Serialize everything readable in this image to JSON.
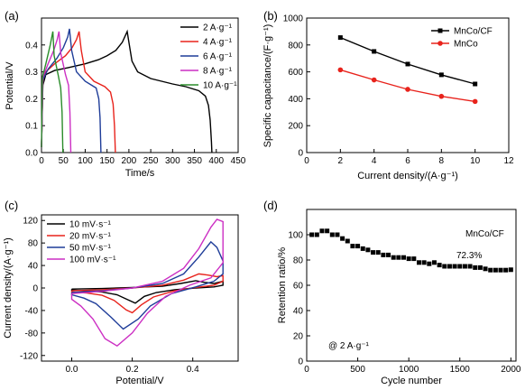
{
  "chart_data": [
    {
      "panel_label": "(a)",
      "type": "line",
      "xlabel": "Time/s",
      "ylabel": "Potential/V",
      "xlim": [
        0,
        450
      ],
      "ylim": [
        0,
        0.5
      ],
      "xticks": [
        "0",
        "50",
        "100",
        "150",
        "200",
        "250",
        "300",
        "350",
        "400",
        "450"
      ],
      "yticks": [
        "0.0",
        "0.1",
        "0.2",
        "0.3",
        "0.4"
      ],
      "ytick_values": [
        0,
        0.1,
        0.2,
        0.3,
        0.4
      ],
      "legend_position": "top-right",
      "series": [
        {
          "name": "2 A·g⁻¹",
          "color": "#000000",
          "points": [
            [
              0,
              0.02
            ],
            [
              3,
              0.25
            ],
            [
              10,
              0.29
            ],
            [
              30,
              0.305
            ],
            [
              60,
              0.315
            ],
            [
              100,
              0.33
            ],
            [
              130,
              0.345
            ],
            [
              150,
              0.36
            ],
            [
              170,
              0.38
            ],
            [
              185,
              0.41
            ],
            [
              196,
              0.45
            ],
            [
              200,
              0.41
            ],
            [
              207,
              0.34
            ],
            [
              220,
              0.3
            ],
            [
              250,
              0.275
            ],
            [
              300,
              0.255
            ],
            [
              330,
              0.245
            ],
            [
              360,
              0.23
            ],
            [
              375,
              0.21
            ],
            [
              382,
              0.175
            ],
            [
              386,
              0.12
            ],
            [
              389,
              0.04
            ],
            [
              390,
              0.0
            ]
          ]
        },
        {
          "name": "4 A·g⁻¹",
          "color": "#e8231c",
          "points": [
            [
              0,
              0.02
            ],
            [
              3,
              0.27
            ],
            [
              10,
              0.3
            ],
            [
              30,
              0.33
            ],
            [
              55,
              0.36
            ],
            [
              70,
              0.39
            ],
            [
              80,
              0.42
            ],
            [
              86,
              0.45
            ],
            [
              91,
              0.38
            ],
            [
              100,
              0.3
            ],
            [
              120,
              0.265
            ],
            [
              145,
              0.245
            ],
            [
              158,
              0.225
            ],
            [
              164,
              0.18
            ],
            [
              167,
              0.1
            ],
            [
              169,
              0.0
            ]
          ]
        },
        {
          "name": "6 A·g⁻¹",
          "color": "#1f3d99",
          "points": [
            [
              0,
              0.02
            ],
            [
              3,
              0.27
            ],
            [
              15,
              0.31
            ],
            [
              35,
              0.35
            ],
            [
              50,
              0.39
            ],
            [
              60,
              0.43
            ],
            [
              64,
              0.46
            ],
            [
              69,
              0.38
            ],
            [
              80,
              0.3
            ],
            [
              100,
              0.265
            ],
            [
              125,
              0.24
            ],
            [
              131,
              0.2
            ],
            [
              134,
              0.13
            ],
            [
              136,
              0.0
            ]
          ]
        },
        {
          "name": "8 A·g⁻¹",
          "color": "#cc2fc3",
          "points": [
            [
              0,
              0.02
            ],
            [
              3,
              0.28
            ],
            [
              15,
              0.33
            ],
            [
              28,
              0.38
            ],
            [
              36,
              0.42
            ],
            [
              40,
              0.45
            ],
            [
              44,
              0.37
            ],
            [
              55,
              0.29
            ],
            [
              62,
              0.25
            ],
            [
              65,
              0.15
            ],
            [
              67,
              0.0
            ]
          ]
        },
        {
          "name": "10 A·g⁻¹",
          "color": "#2a8c2a",
          "points": [
            [
              0,
              0.02
            ],
            [
              2,
              0.28
            ],
            [
              10,
              0.33
            ],
            [
              20,
              0.4
            ],
            [
              26,
              0.45
            ],
            [
              29,
              0.36
            ],
            [
              38,
              0.29
            ],
            [
              44,
              0.24
            ],
            [
              47,
              0.15
            ],
            [
              49,
              0.0
            ]
          ]
        }
      ]
    },
    {
      "panel_label": "(b)",
      "type": "line",
      "xlabel": "Current density/(A·g⁻¹)",
      "ylabel": "Specific capacitance/(F·g⁻¹)",
      "xlim": [
        0,
        12
      ],
      "ylim": [
        0,
        1000
      ],
      "xticks": [
        "0",
        "2",
        "4",
        "6",
        "8",
        "10",
        "12"
      ],
      "yticks": [
        "0",
        "200",
        "400",
        "600",
        "800",
        "1000"
      ],
      "legend_position": "top-right",
      "series": [
        {
          "name": "MnCo/CF",
          "color": "#000000",
          "marker": "square",
          "x": [
            2,
            4,
            6,
            8,
            10
          ],
          "values": [
            855,
            752,
            658,
            578,
            510
          ]
        },
        {
          "name": "MnCo",
          "color": "#e8231c",
          "marker": "circle",
          "x": [
            2,
            4,
            6,
            8,
            10
          ],
          "values": [
            615,
            540,
            470,
            418,
            380
          ]
        }
      ]
    },
    {
      "panel_label": "(c)",
      "type": "line",
      "xlabel": "Potential/V",
      "ylabel": "Current density/(A·g⁻¹)",
      "xlim": [
        -0.1,
        0.55
      ],
      "ylim": [
        -130,
        130
      ],
      "xticks": [
        "0.0",
        "0.2",
        "0.4"
      ],
      "yticks": [
        "120",
        "80",
        "40",
        "0",
        "-40",
        "-80",
        "-120"
      ],
      "ytick_values": [
        120,
        80,
        40,
        0,
        -40,
        -80,
        -120
      ],
      "legend_position": "top-left",
      "series": [
        {
          "name": "10 mV·s⁻¹",
          "color": "#000000",
          "points": [
            [
              0,
              -2
            ],
            [
              0.1,
              -1
            ],
            [
              0.2,
              1
            ],
            [
              0.3,
              3
            ],
            [
              0.36,
              8
            ],
            [
              0.41,
              13
            ],
            [
              0.44,
              10
            ],
            [
              0.47,
              8
            ],
            [
              0.5,
              12
            ],
            [
              0.5,
              5
            ],
            [
              0.47,
              2
            ],
            [
              0.41,
              0
            ],
            [
              0.34,
              -3
            ],
            [
              0.28,
              -8
            ],
            [
              0.24,
              -15
            ],
            [
              0.21,
              -27
            ],
            [
              0.19,
              -22
            ],
            [
              0.15,
              -12
            ],
            [
              0.1,
              -7
            ],
            [
              0.05,
              -5
            ],
            [
              0,
              -4
            ],
            [
              0,
              -2
            ]
          ]
        },
        {
          "name": "20 mV·s⁻¹",
          "color": "#e8231c",
          "points": [
            [
              0,
              -5
            ],
            [
              0.1,
              -3
            ],
            [
              0.2,
              0
            ],
            [
              0.3,
              5
            ],
            [
              0.37,
              14
            ],
            [
              0.42,
              25
            ],
            [
              0.45,
              23
            ],
            [
              0.48,
              20
            ],
            [
              0.5,
              22
            ],
            [
              0.5,
              12
            ],
            [
              0.47,
              5
            ],
            [
              0.41,
              1
            ],
            [
              0.34,
              -5
            ],
            [
              0.27,
              -16
            ],
            [
              0.23,
              -30
            ],
            [
              0.2,
              -44
            ],
            [
              0.18,
              -39
            ],
            [
              0.14,
              -22
            ],
            [
              0.1,
              -13
            ],
            [
              0.05,
              -9
            ],
            [
              0,
              -7
            ],
            [
              0,
              -5
            ]
          ]
        },
        {
          "name": "50 mV·s⁻¹",
          "color": "#1f3d99",
          "points": [
            [
              0,
              -8
            ],
            [
              0.1,
              -5
            ],
            [
              0.2,
              0
            ],
            [
              0.3,
              8
            ],
            [
              0.37,
              25
            ],
            [
              0.42,
              55
            ],
            [
              0.46,
              82
            ],
            [
              0.48,
              72
            ],
            [
              0.5,
              48
            ],
            [
              0.5,
              25
            ],
            [
              0.47,
              12
            ],
            [
              0.41,
              2
            ],
            [
              0.33,
              -10
            ],
            [
              0.26,
              -32
            ],
            [
              0.22,
              -55
            ],
            [
              0.17,
              -73
            ],
            [
              0.13,
              -52
            ],
            [
              0.08,
              -28
            ],
            [
              0.04,
              -18
            ],
            [
              0,
              -12
            ],
            [
              0,
              -8
            ]
          ]
        },
        {
          "name": "100 mV·s⁻¹",
          "color": "#cc2fc3",
          "points": [
            [
              0,
              -10
            ],
            [
              0.1,
              -6
            ],
            [
              0.2,
              0
            ],
            [
              0.3,
              12
            ],
            [
              0.37,
              35
            ],
            [
              0.42,
              70
            ],
            [
              0.46,
              108
            ],
            [
              0.48,
              122
            ],
            [
              0.5,
              118
            ],
            [
              0.5,
              45
            ],
            [
              0.46,
              18
            ],
            [
              0.39,
              5
            ],
            [
              0.31,
              -15
            ],
            [
              0.25,
              -45
            ],
            [
              0.2,
              -80
            ],
            [
              0.15,
              -103
            ],
            [
              0.11,
              -90
            ],
            [
              0.07,
              -55
            ],
            [
              0.03,
              -32
            ],
            [
              0,
              -20
            ],
            [
              0,
              -10
            ]
          ]
        }
      ]
    },
    {
      "panel_label": "(d)",
      "type": "scatter",
      "xlabel": "Cycle number",
      "ylabel": "Retention ratio/%",
      "xlim": [
        0,
        2050
      ],
      "ylim": [
        0,
        120
      ],
      "xticks": [
        "0",
        "500",
        "1000",
        "1500",
        "2000"
      ],
      "yticks": [
        "0",
        "20",
        "40",
        "60",
        "80",
        "100"
      ],
      "annotations": [
        "MnCo/CF",
        "72.3%",
        "@ 2 A·g⁻¹"
      ],
      "x": [
        50,
        100,
        150,
        200,
        250,
        300,
        350,
        400,
        450,
        500,
        550,
        600,
        650,
        700,
        750,
        800,
        850,
        900,
        950,
        1000,
        1050,
        1100,
        1150,
        1200,
        1250,
        1300,
        1350,
        1400,
        1450,
        1500,
        1550,
        1600,
        1650,
        1700,
        1750,
        1800,
        1850,
        1900,
        1950,
        2000
      ],
      "values": [
        100,
        100,
        103,
        103,
        100,
        100,
        97,
        95,
        91,
        91,
        89,
        88,
        86,
        86,
        84,
        84,
        82,
        82,
        82,
        81,
        81,
        78,
        78,
        77,
        78,
        76,
        75,
        75,
        75,
        75,
        75,
        75,
        74,
        74,
        73,
        72,
        72,
        72,
        72,
        72.3
      ],
      "color": "#000000",
      "marker": "square"
    }
  ]
}
